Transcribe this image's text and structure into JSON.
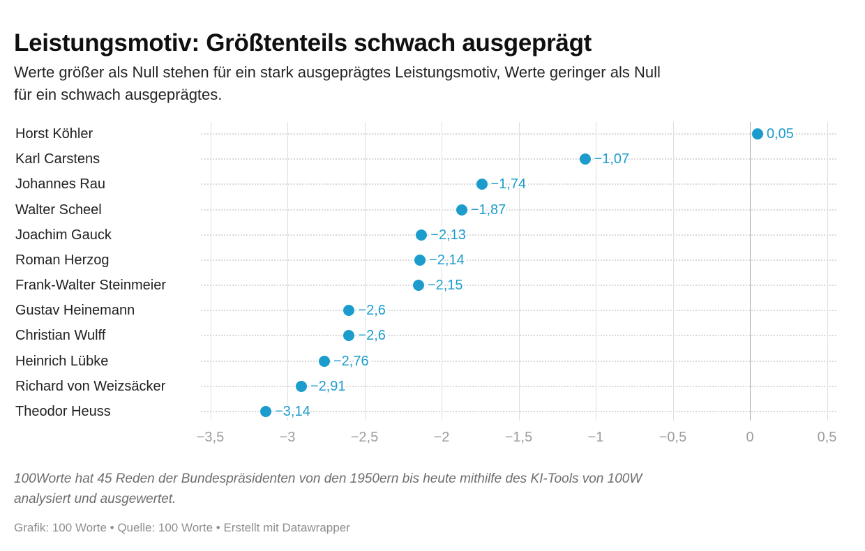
{
  "header": {
    "title": "Leistungsmotiv: Größtenteils schwach ausgeprägt",
    "subtitle_lines": [
      "Werte größer als Null stehen für ein stark ausgeprägtes Leistungsmotiv, Werte geringer als Null",
      "für ein schwach ausgeprägtes."
    ]
  },
  "chart_data": {
    "type": "scatter",
    "variant": "horizontal-dot-plot",
    "title": "Leistungsmotiv: Größtenteils schwach ausgeprägt",
    "xlabel": "",
    "ylabel": "",
    "xlim": [
      -3.5,
      0.5
    ],
    "grid": true,
    "legend": "none",
    "dot_color": "#1c9ccc",
    "categories": [
      "Horst Köhler",
      "Karl Carstens",
      "Johannes Rau",
      "Walter Scheel",
      "Joachim Gauck",
      "Roman Herzog",
      "Frank-Walter Steinmeier",
      "Gustav Heinemann",
      "Christian Wulff",
      "Heinrich Lübke",
      "Richard von Weizsäcker",
      "Theodor Heuss"
    ],
    "values": [
      0.05,
      -1.07,
      -1.74,
      -1.87,
      -2.13,
      -2.14,
      -2.15,
      -2.6,
      -2.6,
      -2.76,
      -2.91,
      -3.14
    ],
    "value_labels": [
      "0,05",
      "−1,07",
      "−1,74",
      "−1,87",
      "−2,13",
      "−2,14",
      "−2,15",
      "−2,6",
      "−2,6",
      "−2,76",
      "−2,91",
      "−3,14"
    ],
    "x_ticks": [
      {
        "label": "−3,5",
        "value": -3.5
      },
      {
        "label": "−3",
        "value": -3.0
      },
      {
        "label": "−2,5",
        "value": -2.5
      },
      {
        "label": "−2",
        "value": -2.0
      },
      {
        "label": "−1,5",
        "value": -1.5
      },
      {
        "label": "−1",
        "value": -1.0
      },
      {
        "label": "−0,5",
        "value": -0.5
      },
      {
        "label": "0",
        "value": 0.0
      },
      {
        "label": "0,5",
        "value": 0.5
      }
    ]
  },
  "footer": {
    "notes_lines": [
      "100Worte hat 45 Reden der Bundespräsidenten von den 1950ern bis heute mithilfe des KI-Tools von 100W",
      "analysiert und ausgewertet."
    ],
    "attribution": {
      "parts": [
        "Grafik: 100 Worte",
        "Quelle: 100 Worte",
        "Erstellt mit Datawrapper"
      ],
      "separator": " • "
    }
  }
}
